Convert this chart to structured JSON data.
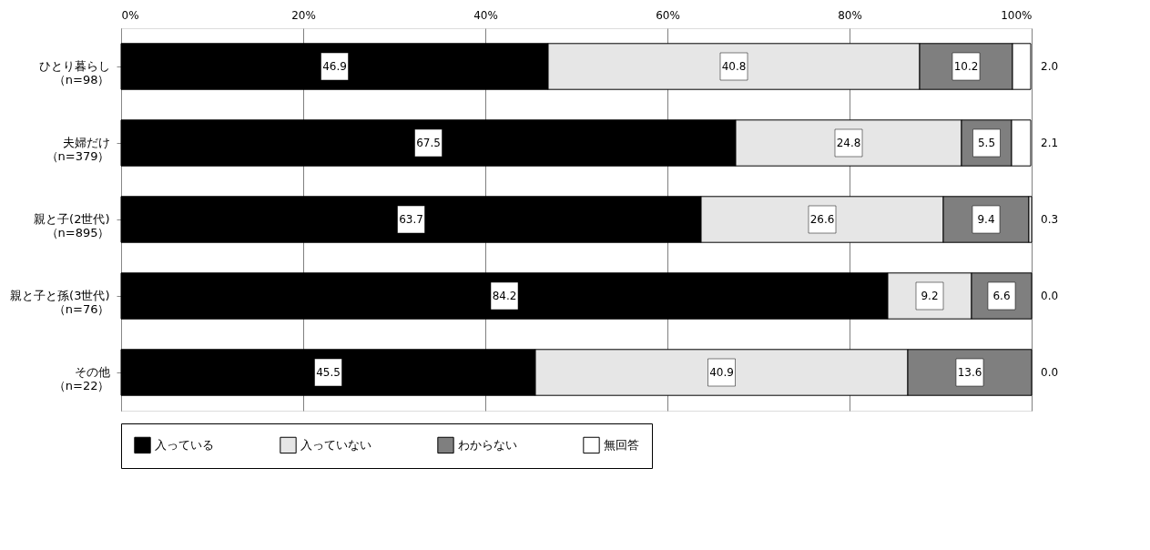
{
  "chart_data": {
    "type": "bar",
    "orientation": "horizontal",
    "stacked": true,
    "grid": "x",
    "legend": "bottom",
    "categories": [
      "ひとり暮らし（n=98）",
      "夫婦だけ（n=379）",
      "親と子(2世代)（n=895）",
      "親と子と孫(3世代)（n=76）",
      "その他（n=22）"
    ],
    "xlim": [
      0,
      100
    ],
    "xticks": [
      {
        "value": 0,
        "label": "0%"
      },
      {
        "value": 20,
        "label": "20%"
      },
      {
        "value": 40,
        "label": "40%"
      },
      {
        "value": 60,
        "label": "60%"
      },
      {
        "value": 80,
        "label": "80%"
      },
      {
        "value": 100,
        "label": "100%"
      }
    ],
    "series": [
      {
        "name": "入っている",
        "color": "#000000",
        "values": [
          46.9,
          67.5,
          63.7,
          84.2,
          45.5
        ],
        "value_labels": [
          "46.9",
          "67.5",
          "63.7",
          "84.2",
          "45.5"
        ]
      },
      {
        "name": "入っていない",
        "color": "#e6e6e6",
        "values": [
          40.8,
          24.8,
          26.6,
          9.2,
          40.9
        ],
        "value_labels": [
          "40.8",
          "24.8",
          "26.6",
          "9.2",
          "40.9"
        ]
      },
      {
        "name": "わからない",
        "color": "#7f7f7f",
        "values": [
          10.2,
          5.5,
          9.4,
          6.6,
          13.6
        ],
        "value_labels": [
          "10.2",
          "5.5",
          "9.4",
          "6.6",
          "13.6"
        ]
      },
      {
        "name": "無回答",
        "color": "#ffffff",
        "values": [
          2.0,
          2.1,
          0.3,
          0.0,
          0.0
        ],
        "value_labels": [
          "2.0",
          "2.1",
          "0.3",
          "0.0",
          "0.0"
        ]
      }
    ]
  }
}
